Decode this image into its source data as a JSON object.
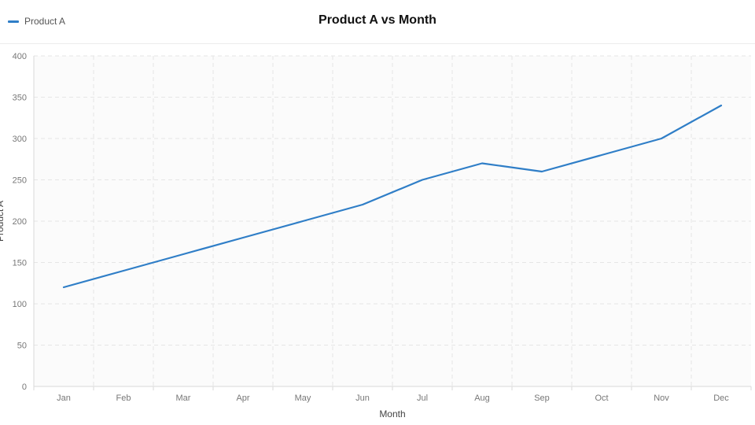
{
  "chart_data": {
    "type": "line",
    "title": "Product A vs Month",
    "xlabel": "Month",
    "ylabel": "Product A",
    "categories": [
      "Jan",
      "Feb",
      "Mar",
      "Apr",
      "May",
      "Jun",
      "Jul",
      "Aug",
      "Sep",
      "Oct",
      "Nov",
      "Dec"
    ],
    "series": [
      {
        "name": "Product A",
        "color": "#2f7ec7",
        "values": [
          120,
          140,
          160,
          180,
          200,
          220,
          250,
          270,
          260,
          280,
          300,
          340
        ]
      }
    ],
    "ylim": [
      0,
      400
    ],
    "yticks": [
      0,
      50,
      100,
      150,
      200,
      250,
      300,
      350,
      400
    ],
    "grid": true,
    "legend_position": "top-left"
  },
  "colors": {
    "plot_background": "#fbfbfb",
    "grid": "#e6e6e6",
    "axis": "#d8d8d8"
  }
}
